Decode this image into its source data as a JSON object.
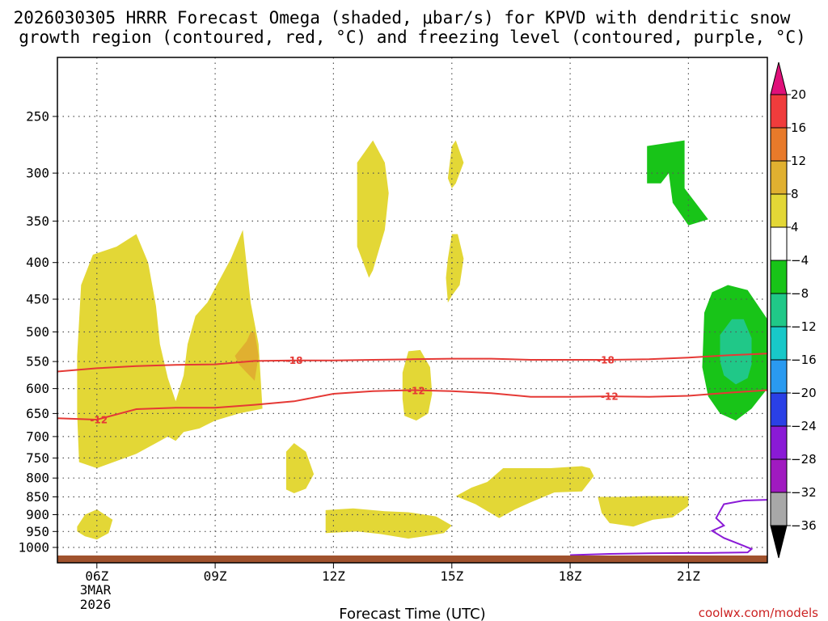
{
  "chart_data": {
    "type": "time-height cross section",
    "title_line1": "2026030305 HRRR Forecast Omega (shaded, μbar/s) for KPVD with dendritic snow",
    "title_line2": "growth region (contoured, red, °C) and freezing level (contoured, purple, °C)",
    "xlabel": "Forecast Time (UTC)",
    "credit": "coolwx.com/models",
    "x_ticks": [
      "06Z",
      "09Z",
      "12Z",
      "15Z",
      "18Z",
      "21Z"
    ],
    "x_tick_hours": [
      6,
      9,
      12,
      15,
      18,
      21
    ],
    "x_date_label": [
      "3MAR",
      "2026"
    ],
    "xlim_hours": [
      5,
      23
    ],
    "y_ticks": [
      250,
      300,
      350,
      400,
      450,
      500,
      550,
      600,
      650,
      700,
      750,
      800,
      850,
      900,
      950,
      1000
    ],
    "ylim_hpa": [
      200,
      1020
    ],
    "colorbar": {
      "labels": [
        "20",
        "16",
        "12",
        "8",
        "4",
        "−4",
        "−8",
        "−12",
        "−16",
        "−20",
        "−24",
        "−28",
        "−32",
        "−36"
      ],
      "colors": [
        "#f03c3c",
        "#e87a2a",
        "#e0b030",
        "#e3d736",
        "#ffffff",
        "#18c418",
        "#20c888",
        "#18c8c8",
        "#2a9af0",
        "#2a40e6",
        "#8a1ad6",
        "#a01ac0",
        "#a8a8a8"
      ],
      "top_cap": "#e0107a",
      "bottom_cap": "#000000"
    },
    "contours": [
      {
        "name": "dgz-minus-18",
        "label": "-18",
        "color": "#e53935",
        "hours": [
          5,
          6,
          7,
          8,
          9,
          10,
          11,
          12,
          13,
          14,
          15,
          16,
          17,
          18,
          19,
          20,
          21,
          22,
          23
        ],
        "hpa": [
          568,
          562,
          558,
          556,
          555,
          549,
          548,
          548,
          547,
          546,
          545,
          545,
          547,
          547,
          547,
          546,
          543,
          539,
          536
        ]
      },
      {
        "name": "dgz-minus-12",
        "label": "-12",
        "color": "#e53935",
        "hours": [
          5,
          6,
          7,
          8,
          9,
          10,
          11,
          12,
          13,
          14,
          15,
          16,
          17,
          18,
          19,
          20,
          21,
          22,
          23
        ],
        "hpa": [
          660,
          663,
          641,
          638,
          638,
          632,
          625,
          610,
          605,
          603,
          605,
          609,
          616,
          616,
          615,
          616,
          614,
          608,
          603
        ]
      },
      {
        "name": "freezing-level",
        "label": "",
        "color": "#8a1ad6",
        "hours": [
          18,
          19,
          20,
          21,
          21.5,
          22.0,
          22.5,
          22.6,
          22.3,
          21.9,
          21.6,
          21.9,
          21.7,
          21.9,
          22.4,
          23
        ],
        "hpa": [
          1025,
          1021,
          1019,
          1018,
          1018,
          1017,
          1016,
          1005,
          990,
          970,
          948,
          932,
          910,
          870,
          860,
          858
        ]
      }
    ],
    "shaded_regions": [
      {
        "name": "yellow-left-plume",
        "omega": "4 to 8",
        "color": "#e3d736",
        "points": [
          [
            5.55,
            760
          ],
          [
            6.0,
            775
          ],
          [
            7.0,
            740
          ],
          [
            7.5,
            715
          ],
          [
            7.8,
            700
          ],
          [
            8.0,
            710
          ],
          [
            8.2,
            690
          ],
          [
            8.6,
            682
          ],
          [
            9.0,
            665
          ],
          [
            9.6,
            650
          ],
          [
            10.2,
            640
          ],
          [
            10.1,
            520
          ],
          [
            9.9,
            455
          ],
          [
            9.7,
            360
          ],
          [
            9.4,
            395
          ],
          [
            8.8,
            455
          ],
          [
            8.5,
            475
          ],
          [
            8.3,
            520
          ],
          [
            8.2,
            575
          ],
          [
            8.0,
            625
          ],
          [
            7.8,
            580
          ],
          [
            7.6,
            520
          ],
          [
            7.5,
            460
          ],
          [
            7.3,
            400
          ],
          [
            7.0,
            365
          ],
          [
            6.5,
            380
          ],
          [
            5.9,
            390
          ],
          [
            5.6,
            430
          ],
          [
            5.5,
            540
          ],
          [
            5.5,
            650
          ]
        ]
      },
      {
        "name": "orange-core",
        "omega": "8 to 12",
        "color": "#e0b030",
        "points": [
          [
            9.5,
            540
          ],
          [
            9.8,
            515
          ],
          [
            9.9,
            500
          ],
          [
            10.0,
            500
          ],
          [
            10.1,
            540
          ],
          [
            10.0,
            585
          ],
          [
            9.8,
            570
          ],
          [
            9.6,
            555
          ]
        ]
      },
      {
        "name": "yellow-tall-13z",
        "omega": "4 to 8",
        "color": "#e3d736",
        "points": [
          [
            12.6,
            380
          ],
          [
            12.6,
            290
          ],
          [
            13.0,
            270
          ],
          [
            13.3,
            290
          ],
          [
            13.4,
            320
          ],
          [
            13.3,
            360
          ],
          [
            13.0,
            410
          ],
          [
            12.9,
            420
          ]
        ]
      },
      {
        "name": "yellow-15z-upper",
        "omega": "4 to 8",
        "color": "#e3d736",
        "points": [
          [
            14.9,
            305
          ],
          [
            15.0,
            275
          ],
          [
            15.1,
            270
          ],
          [
            15.3,
            290
          ],
          [
            15.1,
            310
          ],
          [
            15.0,
            315
          ]
        ]
      },
      {
        "name": "yellow-15z-mid",
        "omega": "4 to 8",
        "color": "#e3d736",
        "points": [
          [
            14.85,
            420
          ],
          [
            14.9,
            395
          ],
          [
            15.0,
            365
          ],
          [
            15.15,
            365
          ],
          [
            15.3,
            395
          ],
          [
            15.2,
            430
          ],
          [
            15.0,
            445
          ],
          [
            14.9,
            455
          ]
        ]
      },
      {
        "name": "yellow-14z",
        "omega": "4 to 8",
        "color": "#e3d736",
        "points": [
          [
            13.75,
            620
          ],
          [
            13.75,
            570
          ],
          [
            13.9,
            532
          ],
          [
            14.2,
            530
          ],
          [
            14.45,
            560
          ],
          [
            14.5,
            610
          ],
          [
            14.4,
            650
          ],
          [
            14.1,
            665
          ],
          [
            13.8,
            655
          ]
        ]
      },
      {
        "name": "yellow-11z",
        "omega": "4 to 8",
        "color": "#e3d736",
        "points": [
          [
            10.8,
            800
          ],
          [
            10.8,
            735
          ],
          [
            11.0,
            715
          ],
          [
            11.3,
            735
          ],
          [
            11.5,
            790
          ],
          [
            11.3,
            828
          ],
          [
            11.0,
            840
          ],
          [
            10.8,
            830
          ]
        ]
      },
      {
        "name": "yellow-low-band",
        "omega": "4 to 8",
        "color": "#e3d736",
        "points": [
          [
            11.8,
            887
          ],
          [
            12.5,
            882
          ],
          [
            13.3,
            890
          ],
          [
            13.9,
            893
          ],
          [
            14.6,
            905
          ],
          [
            15.0,
            932
          ],
          [
            14.8,
            955
          ],
          [
            14.3,
            965
          ],
          [
            13.9,
            972
          ],
          [
            13.2,
            958
          ],
          [
            12.6,
            950
          ],
          [
            11.8,
            955
          ]
        ]
      },
      {
        "name": "yellow-16z-17z",
        "omega": "4 to 8",
        "color": "#e3d736",
        "points": [
          [
            15.1,
            848
          ],
          [
            15.5,
            825
          ],
          [
            15.9,
            810
          ],
          [
            16.3,
            775
          ],
          [
            17.5,
            775
          ],
          [
            18.3,
            770
          ],
          [
            18.5,
            775
          ],
          [
            18.6,
            795
          ],
          [
            18.3,
            835
          ],
          [
            17.6,
            838
          ],
          [
            17.0,
            865
          ],
          [
            16.6,
            885
          ],
          [
            16.2,
            910
          ],
          [
            15.6,
            870
          ]
        ]
      },
      {
        "name": "yellow-19z-20z",
        "omega": "4 to 8",
        "color": "#e3d736",
        "points": [
          [
            18.7,
            850
          ],
          [
            19.3,
            850
          ],
          [
            19.9,
            848
          ],
          [
            21.0,
            848
          ],
          [
            21.0,
            875
          ],
          [
            20.6,
            908
          ],
          [
            20.1,
            915
          ],
          [
            19.6,
            935
          ],
          [
            19.0,
            925
          ],
          [
            18.8,
            895
          ]
        ]
      },
      {
        "name": "yellow-small-06z",
        "omega": "4 to 8",
        "color": "#e3d736",
        "points": [
          [
            5.5,
            935
          ],
          [
            5.7,
            900
          ],
          [
            6.0,
            885
          ],
          [
            6.4,
            915
          ],
          [
            6.3,
            955
          ],
          [
            6.0,
            975
          ],
          [
            5.7,
            965
          ],
          [
            5.5,
            950
          ]
        ]
      },
      {
        "name": "green-upper-right",
        "omega": "-4 to -8",
        "color": "#18c418",
        "points": [
          [
            19.95,
            275
          ],
          [
            20.9,
            270
          ],
          [
            20.9,
            315
          ],
          [
            21.5,
            348
          ],
          [
            21.0,
            355
          ],
          [
            20.6,
            330
          ],
          [
            20.5,
            300
          ],
          [
            20.3,
            310
          ],
          [
            19.95,
            310
          ]
        ]
      },
      {
        "name": "green-right-mid",
        "omega": "-4 to -8",
        "color": "#18c418",
        "points": [
          [
            21.4,
            470
          ],
          [
            21.6,
            440
          ],
          [
            22.0,
            430
          ],
          [
            22.5,
            437
          ],
          [
            23,
            480
          ],
          [
            23,
            600
          ],
          [
            22.6,
            640
          ],
          [
            22.2,
            665
          ],
          [
            21.8,
            650
          ],
          [
            21.5,
            615
          ],
          [
            21.35,
            560
          ]
        ]
      },
      {
        "name": "teal-right-core",
        "omega": "-8 to -12",
        "color": "#20c888",
        "points": [
          [
            21.8,
            505
          ],
          [
            22.1,
            480
          ],
          [
            22.4,
            480
          ],
          [
            22.6,
            510
          ],
          [
            22.6,
            555
          ],
          [
            22.5,
            580
          ],
          [
            22.2,
            592
          ],
          [
            21.9,
            575
          ],
          [
            21.8,
            550
          ]
        ]
      }
    ],
    "terrain_hpa": 1016
  }
}
